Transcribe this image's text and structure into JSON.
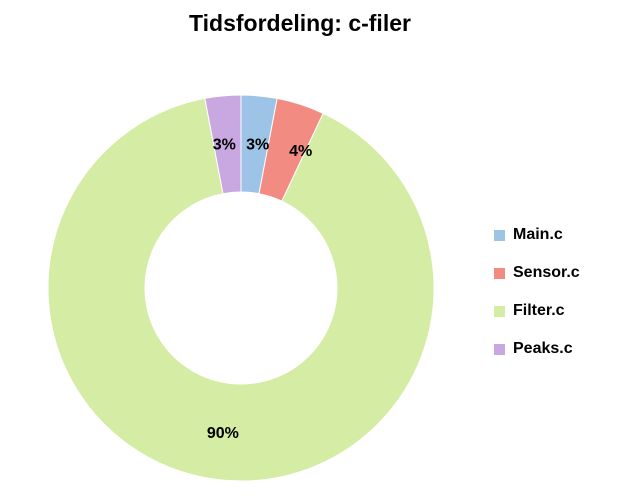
{
  "chart_data": {
    "type": "pie",
    "variant": "donut",
    "title": "Tidsfordeling: c-filer",
    "categories": [
      "Main.c",
      "Sensor.c",
      "Filter.c",
      "Peaks.c"
    ],
    "values": [
      3,
      4,
      90,
      3
    ],
    "labels": [
      "3%",
      "4%",
      "90%",
      "3%"
    ],
    "colors": [
      "#9DC3E6",
      "#F28B82",
      "#D4ECA4",
      "#C9A7E0"
    ],
    "legend_position": "right"
  }
}
